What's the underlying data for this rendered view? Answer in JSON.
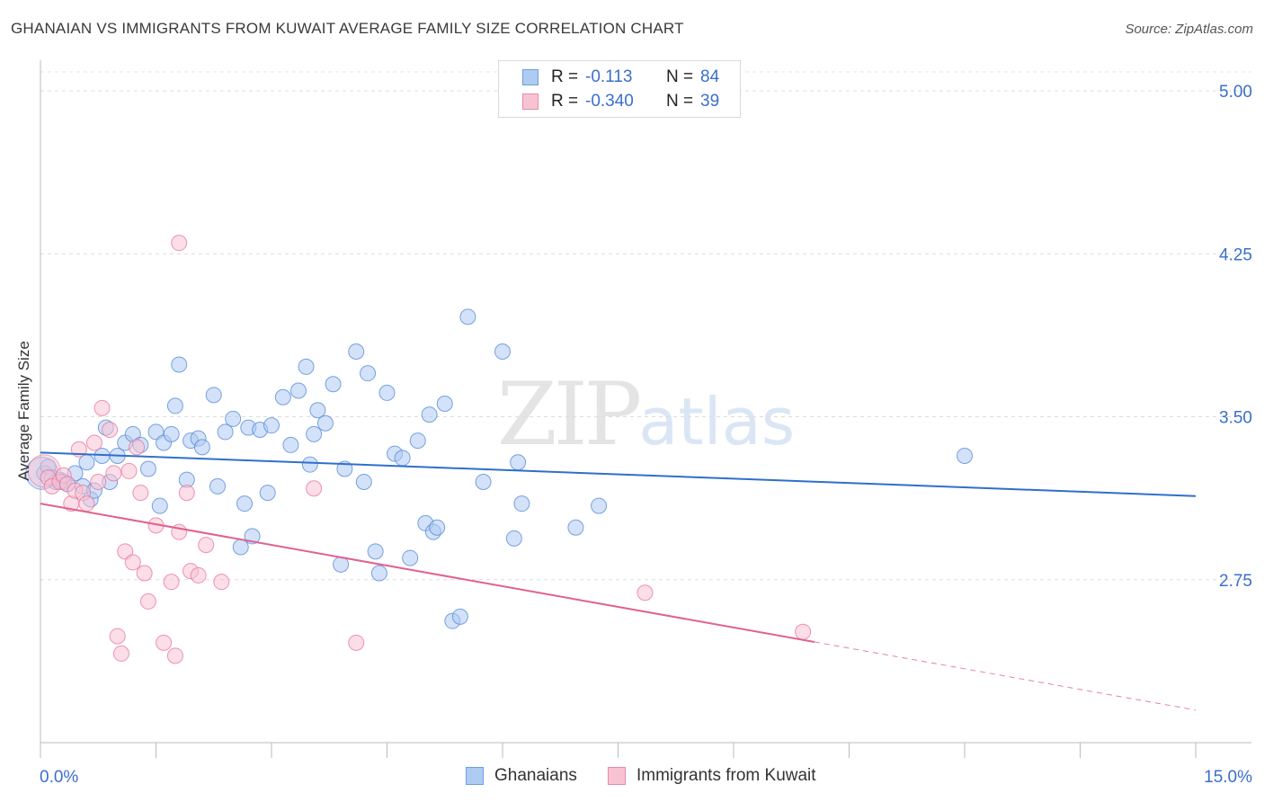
{
  "title": "GHANAIAN VS IMMIGRANTS FROM KUWAIT AVERAGE FAMILY SIZE CORRELATION CHART",
  "source": "Source: ZipAtlas.com",
  "watermark": {
    "zip": "ZIP",
    "atlas": "atlas"
  },
  "legend": {
    "rows": [
      {
        "r_label": "R =",
        "r_value": "-0.113",
        "n_label": "N =",
        "n_value": "84",
        "color": "#aecbf2",
        "border": "#6e9ee0"
      },
      {
        "r_label": "R =",
        "r_value": "-0.340",
        "n_label": "N =",
        "n_value": "39",
        "color": "#f7c3d3",
        "border": "#e98aa8"
      }
    ]
  },
  "bottom_legend": [
    "Ghanaians",
    "Immigrants from Kuwait"
  ],
  "chart_data": {
    "type": "scatter",
    "xlabel": "",
    "ylabel": "Average Family Size",
    "xlim": [
      0,
      15
    ],
    "ylim": [
      2.0,
      5.12
    ],
    "x_tick_labels": [
      "0.0%",
      "15.0%"
    ],
    "y_ticks": [
      2.75,
      3.5,
      4.25,
      5.0
    ],
    "y_tick_labels": [
      "2.75",
      "3.50",
      "4.25",
      "5.00"
    ],
    "grid": "horizontal dashed",
    "colors": {
      "blue": "#4f86d6",
      "pink": "#e8729b",
      "blue_fill": "#aecbf2",
      "pink_fill": "#f7c3d3",
      "axis_text": "#3a6fc9"
    },
    "series": [
      {
        "name": "Ghanaians",
        "trend": {
          "x": [
            0,
            15
          ],
          "y": [
            3.335,
            3.135
          ],
          "dashed_from": null
        },
        "points": [
          [
            0.05,
            3.24
          ],
          [
            0.1,
            3.27
          ],
          [
            0.15,
            3.22
          ],
          [
            0.2,
            3.2
          ],
          [
            0.25,
            3.21
          ],
          [
            0.3,
            3.2
          ],
          [
            0.35,
            3.19
          ],
          [
            0.45,
            3.24
          ],
          [
            0.55,
            3.18
          ],
          [
            0.6,
            3.29
          ],
          [
            0.65,
            3.12
          ],
          [
            0.7,
            3.16
          ],
          [
            0.8,
            3.32
          ],
          [
            0.85,
            3.45
          ],
          [
            0.9,
            3.2
          ],
          [
            1.0,
            3.32
          ],
          [
            1.1,
            3.38
          ],
          [
            1.2,
            3.42
          ],
          [
            1.3,
            3.37
          ],
          [
            1.4,
            3.26
          ],
          [
            1.5,
            3.43
          ],
          [
            1.55,
            3.09
          ],
          [
            1.6,
            3.38
          ],
          [
            1.7,
            3.42
          ],
          [
            1.75,
            3.55
          ],
          [
            1.8,
            3.74
          ],
          [
            1.9,
            3.21
          ],
          [
            1.95,
            3.39
          ],
          [
            2.05,
            3.4
          ],
          [
            2.1,
            3.36
          ],
          [
            2.25,
            3.6
          ],
          [
            2.3,
            3.18
          ],
          [
            2.4,
            3.43
          ],
          [
            2.5,
            3.49
          ],
          [
            2.6,
            2.9
          ],
          [
            2.65,
            3.1
          ],
          [
            2.7,
            3.45
          ],
          [
            2.75,
            2.95
          ],
          [
            2.85,
            3.44
          ],
          [
            2.95,
            3.15
          ],
          [
            3.0,
            3.46
          ],
          [
            3.15,
            3.59
          ],
          [
            3.25,
            3.37
          ],
          [
            3.35,
            3.62
          ],
          [
            3.45,
            3.73
          ],
          [
            3.5,
            3.28
          ],
          [
            3.55,
            3.42
          ],
          [
            3.6,
            3.53
          ],
          [
            3.7,
            3.47
          ],
          [
            3.8,
            3.65
          ],
          [
            3.9,
            2.82
          ],
          [
            3.95,
            3.26
          ],
          [
            4.1,
            3.8
          ],
          [
            4.2,
            3.2
          ],
          [
            4.25,
            3.7
          ],
          [
            4.35,
            2.88
          ],
          [
            4.4,
            2.78
          ],
          [
            4.5,
            3.61
          ],
          [
            4.6,
            3.33
          ],
          [
            4.7,
            3.31
          ],
          [
            4.8,
            2.85
          ],
          [
            4.9,
            3.39
          ],
          [
            5.0,
            3.01
          ],
          [
            5.05,
            3.51
          ],
          [
            5.1,
            2.97
          ],
          [
            5.15,
            2.99
          ],
          [
            5.25,
            3.56
          ],
          [
            5.35,
            2.56
          ],
          [
            5.45,
            2.58
          ],
          [
            5.55,
            3.96
          ],
          [
            5.75,
            3.2
          ],
          [
            6.0,
            3.8
          ],
          [
            6.15,
            2.94
          ],
          [
            6.2,
            3.29
          ],
          [
            6.25,
            3.1
          ],
          [
            6.95,
            2.99
          ],
          [
            7.25,
            3.09
          ],
          [
            12.0,
            3.32
          ]
        ],
        "big_point": [
          0.02,
          3.24
        ]
      },
      {
        "name": "Immigrants from Kuwait",
        "trend": {
          "x": [
            0,
            15
          ],
          "y": [
            3.1,
            2.15
          ],
          "dashed_from": 10.05
        },
        "points": [
          [
            0.1,
            3.22
          ],
          [
            0.15,
            3.18
          ],
          [
            0.25,
            3.2
          ],
          [
            0.3,
            3.23
          ],
          [
            0.35,
            3.19
          ],
          [
            0.4,
            3.1
          ],
          [
            0.45,
            3.16
          ],
          [
            0.5,
            3.35
          ],
          [
            0.55,
            3.15
          ],
          [
            0.6,
            3.1
          ],
          [
            0.7,
            3.38
          ],
          [
            0.75,
            3.2
          ],
          [
            0.8,
            3.54
          ],
          [
            0.9,
            3.44
          ],
          [
            0.95,
            3.24
          ],
          [
            1.0,
            2.49
          ],
          [
            1.05,
            2.41
          ],
          [
            1.1,
            2.88
          ],
          [
            1.15,
            3.25
          ],
          [
            1.2,
            2.83
          ],
          [
            1.25,
            3.36
          ],
          [
            1.3,
            3.15
          ],
          [
            1.35,
            2.78
          ],
          [
            1.4,
            2.65
          ],
          [
            1.5,
            3.0
          ],
          [
            1.6,
            2.46
          ],
          [
            1.7,
            2.74
          ],
          [
            1.75,
            2.4
          ],
          [
            1.8,
            2.97
          ],
          [
            1.9,
            3.15
          ],
          [
            1.95,
            2.79
          ],
          [
            2.05,
            2.77
          ],
          [
            2.15,
            2.91
          ],
          [
            2.35,
            2.74
          ],
          [
            1.8,
            4.3
          ],
          [
            3.55,
            3.17
          ],
          [
            4.1,
            2.46
          ],
          [
            7.85,
            2.69
          ],
          [
            9.9,
            2.51
          ]
        ],
        "big_point": [
          0.05,
          3.25
        ]
      }
    ]
  }
}
